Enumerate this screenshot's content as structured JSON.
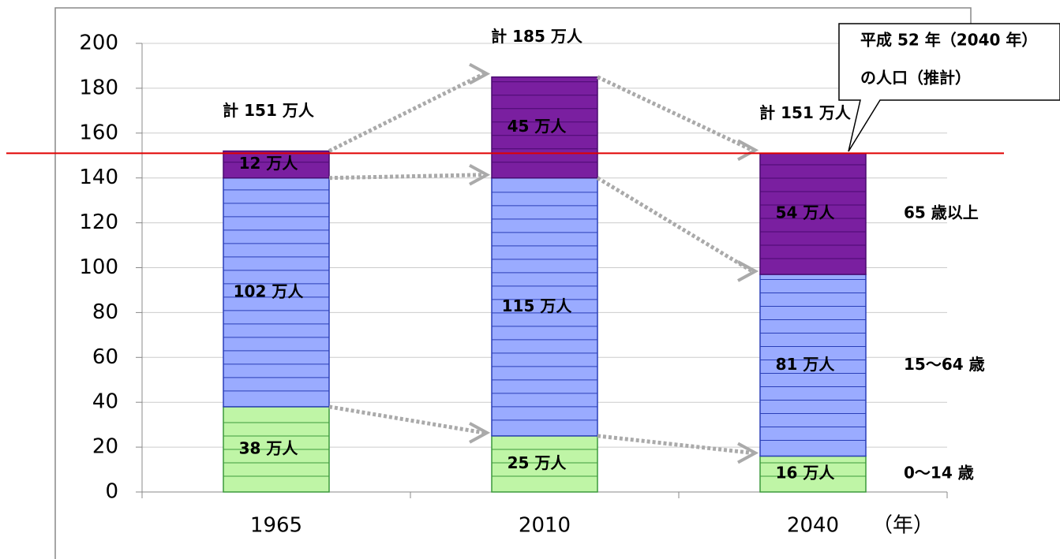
{
  "chart_data": {
    "type": "stacked_bar",
    "categories": [
      "1965",
      "2010",
      "2040"
    ],
    "x_unit": "（年）",
    "series": [
      {
        "name": "0～14 歳",
        "color": "#bff5a6",
        "values": [
          38,
          25,
          16
        ],
        "value_labels": [
          "38 万人",
          "25 万人",
          "16 万人"
        ]
      },
      {
        "name": "15～64 歳",
        "color": "#9aabff",
        "values": [
          102,
          115,
          81
        ],
        "value_labels": [
          "102 万人",
          "115 万人",
          "81 万人"
        ]
      },
      {
        "name": "65 歳以上",
        "color": "#7a1fa0",
        "values": [
          12,
          45,
          54
        ],
        "value_labels": [
          "12 万人",
          "45 万人",
          "54 万人"
        ]
      }
    ],
    "total_labels": [
      "計 151 万人",
      "計 185 万人",
      "計 151 万人"
    ],
    "reference_line": {
      "value": 151,
      "color": "#e00000"
    },
    "callout": [
      "平成 52 年（2040 年）",
      "の人口（推計）"
    ],
    "ylim": [
      0,
      200
    ],
    "yticks": [
      0,
      20,
      40,
      60,
      80,
      100,
      120,
      140,
      160,
      180,
      200
    ],
    "grid": true
  }
}
